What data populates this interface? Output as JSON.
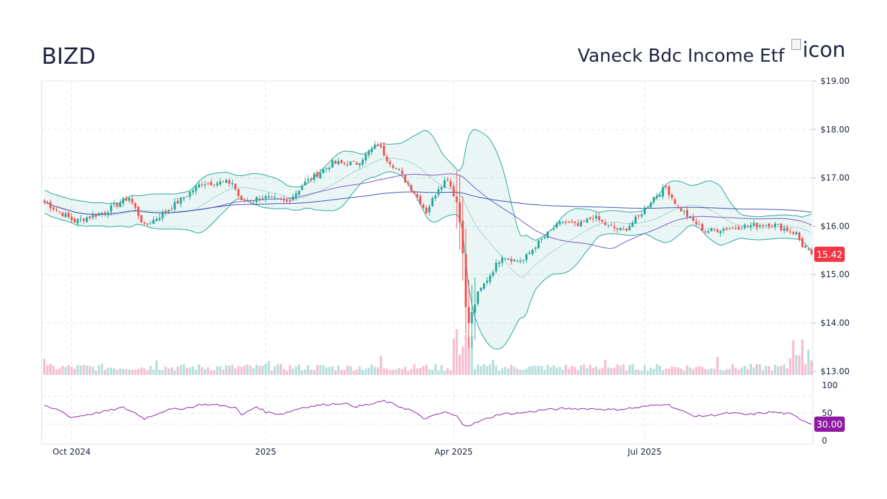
{
  "header": {
    "ticker": "BIZD",
    "name": "Vaneck Bdc Income Etf",
    "logo_alt": "icon"
  },
  "colors": {
    "up": "#26a69a",
    "down": "#ef5350",
    "bb": "#26a69a",
    "ma_short": "#7e57c2",
    "ma_long": "#3f51b5",
    "rsi": "#8e24aa",
    "grid": "#e0e7ea"
  },
  "chart_data": {
    "type": "candlestick",
    "price_axis": {
      "ticks": [
        "$19.00",
        "$18.00",
        "$17.00",
        "$16.00",
        "$15.00",
        "$14.00",
        "$13.00"
      ],
      "values": [
        19,
        18,
        17,
        16,
        15,
        14,
        13
      ],
      "range": [
        13,
        19
      ]
    },
    "x_axis": {
      "labels": [
        "Oct 2024",
        "2025",
        "Apr 2025",
        "Jul 2025"
      ],
      "label_positions_trading_days": [
        9,
        73,
        135,
        198
      ]
    },
    "last_price": "15.42",
    "last_price_value": 15.42,
    "rsi": {
      "ticks": [
        "100",
        "50",
        "0"
      ],
      "values": [
        100,
        50,
        0
      ],
      "last_label": "30.00",
      "last_value": 30
    },
    "trading_days": 254,
    "price_keypoints": [
      [
        0,
        16.5
      ],
      [
        10,
        16.1
      ],
      [
        20,
        16.3
      ],
      [
        28,
        16.6
      ],
      [
        33,
        16.0
      ],
      [
        40,
        16.3
      ],
      [
        52,
        16.9
      ],
      [
        62,
        16.9
      ],
      [
        65,
        16.5
      ],
      [
        72,
        16.6
      ],
      [
        80,
        16.5
      ],
      [
        86,
        16.9
      ],
      [
        95,
        17.3
      ],
      [
        103,
        17.3
      ],
      [
        110,
        17.7
      ],
      [
        113,
        17.4
      ],
      [
        116,
        17.2
      ],
      [
        122,
        16.7
      ],
      [
        126,
        16.3
      ],
      [
        130,
        16.8
      ],
      [
        133,
        17.0
      ],
      [
        136,
        16.5
      ],
      [
        137,
        16.1
      ],
      [
        138,
        15.5
      ],
      [
        139,
        14.3
      ],
      [
        140,
        14.0
      ],
      [
        143,
        14.6
      ],
      [
        147,
        15.0
      ],
      [
        151,
        15.4
      ],
      [
        155,
        15.3
      ],
      [
        158,
        15.3
      ],
      [
        162,
        15.6
      ],
      [
        167,
        15.9
      ],
      [
        171,
        16.1
      ],
      [
        176,
        16.0
      ],
      [
        181,
        16.2
      ],
      [
        186,
        16.0
      ],
      [
        191,
        15.9
      ],
      [
        196,
        16.2
      ],
      [
        201,
        16.6
      ],
      [
        205,
        16.8
      ],
      [
        209,
        16.4
      ],
      [
        214,
        16.1
      ],
      [
        218,
        15.9
      ],
      [
        224,
        15.95
      ],
      [
        230,
        16.0
      ],
      [
        240,
        16.05
      ],
      [
        248,
        15.85
      ],
      [
        250,
        15.6
      ],
      [
        253,
        15.42
      ]
    ],
    "rsi_keypoints": [
      [
        0,
        62
      ],
      [
        5,
        55
      ],
      [
        9,
        42
      ],
      [
        15,
        48
      ],
      [
        22,
        55
      ],
      [
        26,
        60
      ],
      [
        30,
        50
      ],
      [
        33,
        40
      ],
      [
        40,
        55
      ],
      [
        48,
        60
      ],
      [
        52,
        66
      ],
      [
        58,
        64
      ],
      [
        63,
        60
      ],
      [
        65,
        46
      ],
      [
        70,
        62
      ],
      [
        73,
        52
      ],
      [
        78,
        48
      ],
      [
        85,
        60
      ],
      [
        92,
        65
      ],
      [
        98,
        68
      ],
      [
        103,
        62
      ],
      [
        108,
        66
      ],
      [
        112,
        72
      ],
      [
        117,
        62
      ],
      [
        121,
        55
      ],
      [
        125,
        40
      ],
      [
        128,
        44
      ],
      [
        132,
        52
      ],
      [
        136,
        44
      ],
      [
        138,
        30
      ],
      [
        140,
        28
      ],
      [
        144,
        36
      ],
      [
        150,
        48
      ],
      [
        157,
        50
      ],
      [
        165,
        56
      ],
      [
        172,
        58
      ],
      [
        180,
        58
      ],
      [
        188,
        56
      ],
      [
        196,
        60
      ],
      [
        205,
        67
      ],
      [
        210,
        54
      ],
      [
        215,
        44
      ],
      [
        220,
        46
      ],
      [
        226,
        50
      ],
      [
        232,
        47
      ],
      [
        240,
        52
      ],
      [
        246,
        48
      ],
      [
        250,
        38
      ],
      [
        253,
        30
      ]
    ]
  }
}
